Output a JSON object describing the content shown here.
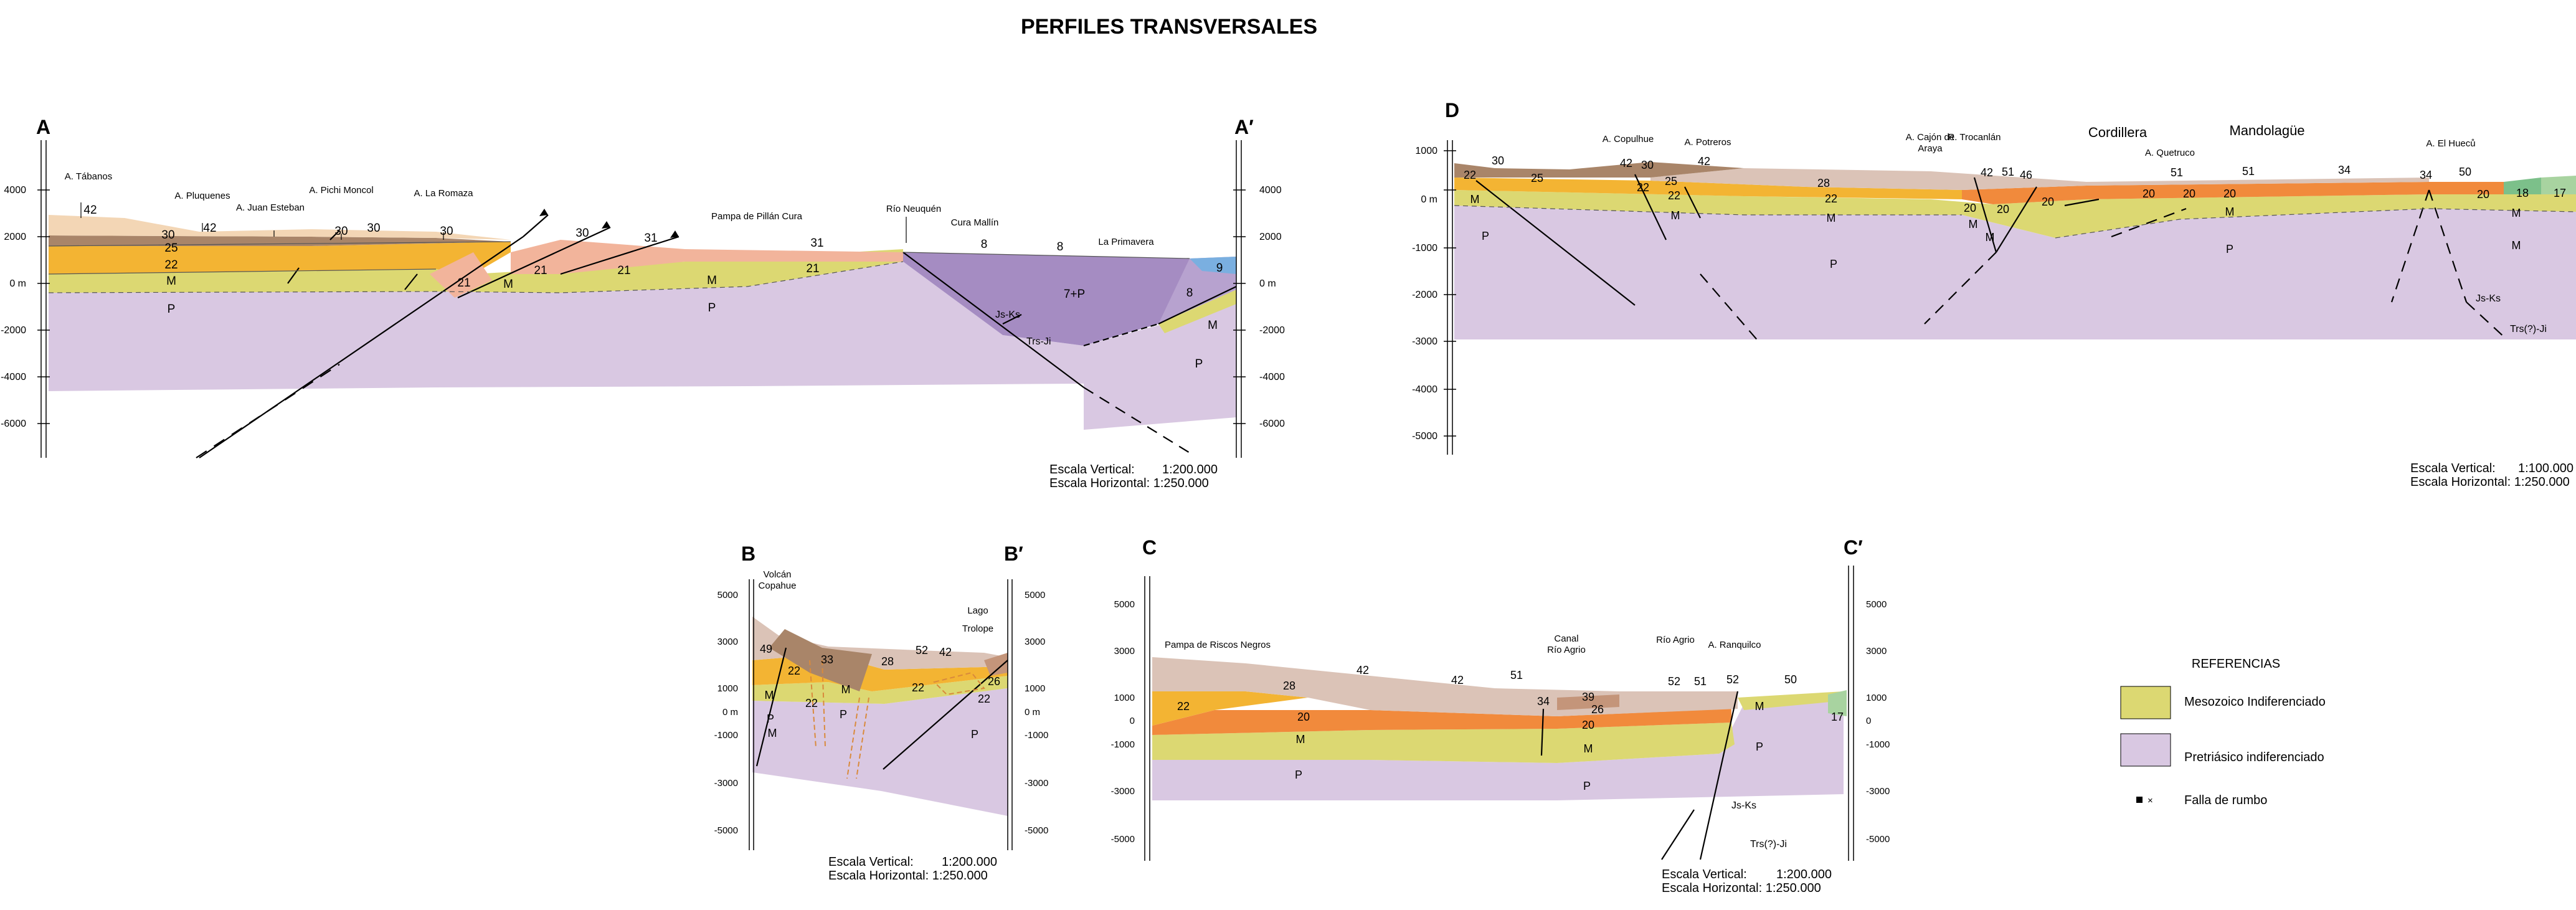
{
  "title": "PERFILES TRANSVERSALES",
  "colors": {
    "pretriasico": "#d9c8e2",
    "mesozoico": "#dcd872",
    "u22": "#f3b433",
    "u20": "#f18a3c",
    "u21": "#f2b49b",
    "u25": "#a98569",
    "u28": "#dbc3b7",
    "u30": "#f3d6b5",
    "u7P": "#a58cc2",
    "u8": "#b7a2cf",
    "u9": "#7aafe0",
    "u17": "#a8d3a0",
    "u18": "#7cc08a",
    "u26": "#c4957a"
  },
  "sectionA": {
    "label_left": "A",
    "label_right": "A′",
    "axis_ticks": [
      "4000",
      "2000",
      "0 m",
      "-2000",
      "-4000",
      "-6000"
    ],
    "places": [
      "A. Tábanos",
      "A. Pluquenes",
      "A. Juan Esteban",
      "A. Pichi Moncol",
      "A. La Romaza",
      "Pampa de Pillán Cura",
      "Río Neuquén",
      "Cura Mallín",
      "La Primavera"
    ],
    "units": [
      "42",
      "30",
      "25",
      "22",
      "M",
      "P",
      "42",
      "30",
      "30",
      "30",
      "21",
      "21",
      "M",
      "31",
      "30",
      "21",
      "M",
      "31",
      "P",
      "21",
      "8",
      "8",
      "9",
      "7+P",
      "8",
      "M",
      "P"
    ],
    "structure_labels": [
      "Js-Ks",
      "Trs-Ji"
    ],
    "scale_vertical_label": "Escala Vertical:",
    "scale_vertical_value": "1:200.000",
    "scale_horizontal": "Escala Horizontal: 1:250.000"
  },
  "sectionD": {
    "label_left": "D",
    "axis_ticks": [
      "1000",
      "0 m",
      "-1000",
      "-2000",
      "-3000",
      "-4000",
      "-5000"
    ],
    "places": [
      "A. Copulhue",
      "A. Potreros",
      "A. Cajón de",
      "Araya",
      "R. Trocanlán",
      "A. Quetruco",
      "A. El Hueců"
    ],
    "region_1": "Cordillera",
    "region_2": "Mandolagüe",
    "units": [
      "22",
      "30",
      "25",
      "42",
      "30",
      "42",
      "25",
      "22",
      "22",
      "M",
      "M",
      "28",
      "22",
      "M",
      "P",
      "20",
      "M",
      "42",
      "51",
      "46",
      "20",
      "20",
      "M",
      "20",
      "20",
      "51",
      "51",
      "34",
      "20",
      "M",
      "34",
      "50",
      "20",
      "18",
      "17",
      "M",
      "P",
      "P",
      "M"
    ],
    "structure_labels": [
      "Js-Ks",
      "Trs(?)-Ji"
    ],
    "scale_vertical_label": "Escala Vertical:",
    "scale_vertical_value": "1:100.000",
    "scale_horizontal": "Escala Horizontal: 1:250.000"
  },
  "sectionB": {
    "label_left": "B",
    "label_right": "B′",
    "axis_ticks": [
      "5000",
      "3000",
      "1000",
      "0 m",
      "-1000",
      "-3000",
      "-5000"
    ],
    "places": [
      "Volcán",
      "Copahue",
      "Lago",
      "Trolope"
    ],
    "units": [
      "49",
      "22",
      "33",
      "28",
      "52",
      "42",
      "26",
      "22",
      "22",
      "M",
      "P",
      "M",
      "22",
      "P",
      "M",
      "P"
    ],
    "scale_vertical_label": "Escala Vertical:",
    "scale_vertical_value": "1:200.000",
    "scale_horizontal": "Escala Horizontal: 1:250.000"
  },
  "sectionC": {
    "label_left": "C",
    "label_right": "C′",
    "axis_ticks": [
      "5000",
      "3000",
      "1000",
      "0",
      "-1000",
      "-3000",
      "-5000"
    ],
    "places": [
      "Pampa de Riscos Negros",
      "Canal",
      "Río Agrio",
      "Río Agrio",
      "A. Ranquilco"
    ],
    "units": [
      "42",
      "28",
      "42",
      "51",
      "34",
      "39",
      "26",
      "20",
      "22",
      "20",
      "M",
      "M",
      "52",
      "51",
      "52",
      "50",
      "M",
      "17",
      "M",
      "P",
      "P",
      "P"
    ],
    "structure_labels": [
      "Js-Ks",
      "Trs(?)-Ji"
    ],
    "scale_vertical_label": "Escala Vertical:",
    "scale_vertical_value": "1:200.000",
    "scale_horizontal": "Escala Horizontal: 1:250.000"
  },
  "legend": {
    "title": "REFERENCIAS",
    "items": [
      "Mesozoico Indiferenciado",
      "Pretriásico indiferenciado",
      "Falla de rumbo"
    ],
    "fault_symbol": "× "
  }
}
